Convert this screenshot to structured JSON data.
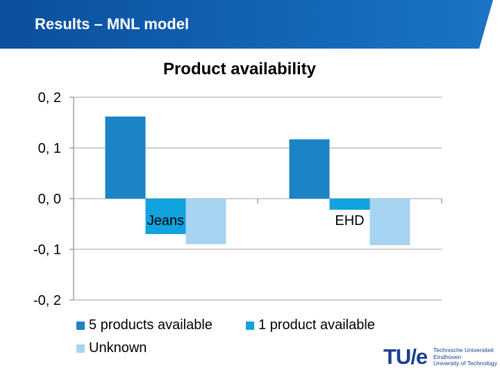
{
  "header": {
    "title": "Results – MNL model"
  },
  "colors": {
    "header_dark": "#0b4f9e",
    "header_light": "#1a74c6",
    "series": [
      "#1a84c4",
      "#11a3dd",
      "#a7d3f3"
    ],
    "grid": "#c0c0c0",
    "logo": "#1a3f8f"
  },
  "chart_data": {
    "type": "bar",
    "title": "Product availability",
    "categories": [
      "Jeans",
      "EHD"
    ],
    "series": [
      {
        "name": "5 products available",
        "values": [
          0.162,
          0.117
        ]
      },
      {
        "name": "1 product available",
        "values": [
          -0.07,
          -0.022
        ]
      },
      {
        "name": "Unknown",
        "values": [
          -0.09,
          -0.092
        ]
      }
    ],
    "ylim": [
      -0.2,
      0.2
    ],
    "yticks": [
      0.2,
      0.1,
      0.0,
      -0.1,
      -0.2
    ],
    "ytick_labels": [
      "0, 2",
      "0, 1",
      "0, 0",
      "-0, 1",
      "-0, 2"
    ],
    "grid": true,
    "legend_position": "bottom"
  },
  "logo": {
    "mark": "TU/e",
    "lines": [
      "Technische Universiteit",
      "Eindhoven",
      "University of Technology"
    ]
  }
}
